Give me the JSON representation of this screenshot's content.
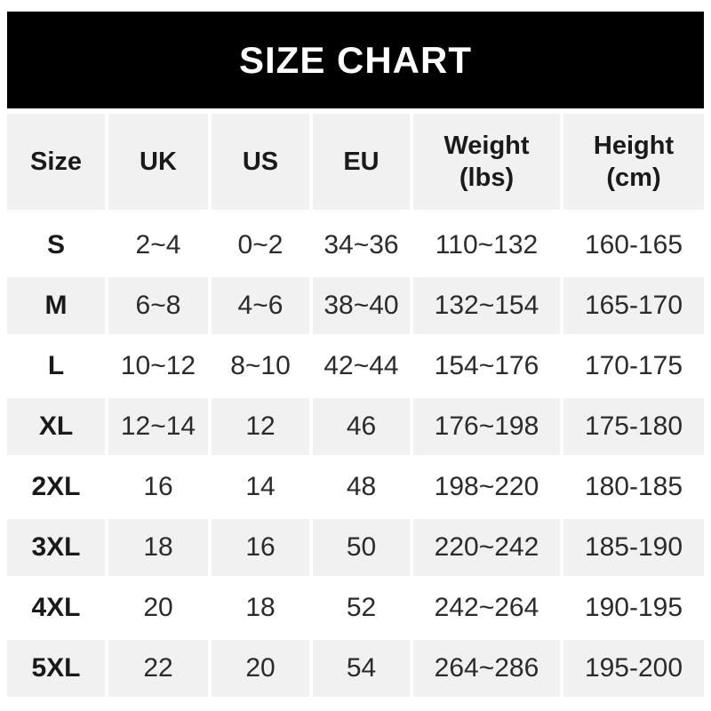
{
  "title": "SIZE CHART",
  "colors": {
    "header_bar_bg": "#000000",
    "title_text": "#ffffff",
    "stripe_bg": "#f1f1f1",
    "text": "#1a1a1a",
    "data_text": "#2b2b2b"
  },
  "table": {
    "columns": [
      {
        "key": "size",
        "label": "Size",
        "sub": ""
      },
      {
        "key": "uk",
        "label": "UK",
        "sub": ""
      },
      {
        "key": "us",
        "label": "US",
        "sub": ""
      },
      {
        "key": "eu",
        "label": "EU",
        "sub": ""
      },
      {
        "key": "weight",
        "label": "Weight",
        "sub": "(lbs)"
      },
      {
        "key": "height",
        "label": "Height",
        "sub": "(cm)"
      }
    ]
  },
  "chart_data": {
    "type": "table",
    "title": "SIZE CHART",
    "columns": [
      "Size",
      "UK",
      "US",
      "EU",
      "Weight (lbs)",
      "Height (cm)"
    ],
    "rows": [
      [
        "S",
        "2~4",
        "0~2",
        "34~36",
        "110~132",
        "160-165"
      ],
      [
        "M",
        "6~8",
        "4~6",
        "38~40",
        "132~154",
        "165-170"
      ],
      [
        "L",
        "10~12",
        "8~10",
        "42~44",
        "154~176",
        "170-175"
      ],
      [
        "XL",
        "12~14",
        "12",
        "46",
        "176~198",
        "175-180"
      ],
      [
        "2XL",
        "16",
        "14",
        "48",
        "198~220",
        "180-185"
      ],
      [
        "3XL",
        "18",
        "16",
        "50",
        "220~242",
        "185-190"
      ],
      [
        "4XL",
        "20",
        "18",
        "52",
        "242~264",
        "190-195"
      ],
      [
        "5XL",
        "22",
        "20",
        "54",
        "264~286",
        "195-200"
      ]
    ]
  }
}
